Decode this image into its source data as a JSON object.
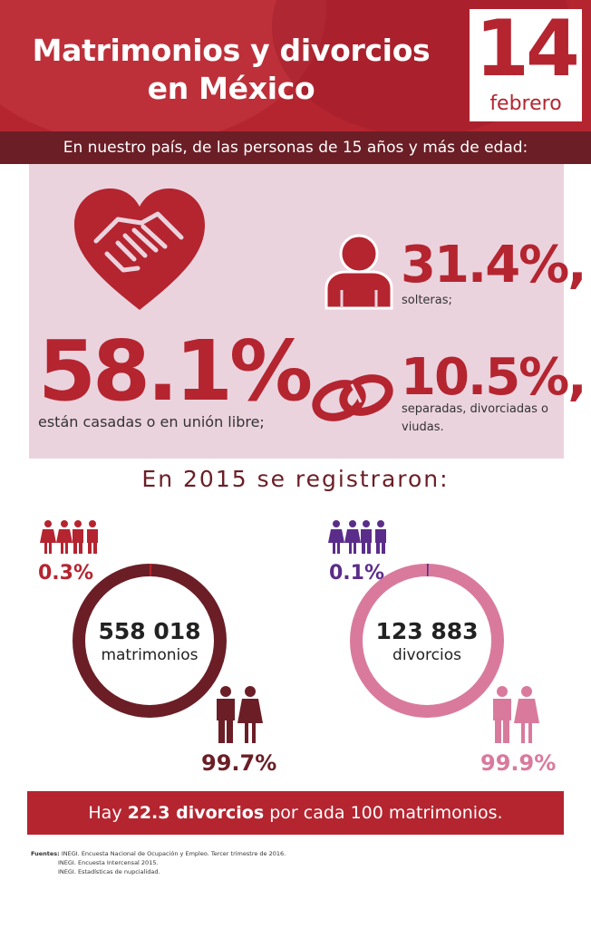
{
  "header": {
    "title_line1": "Matrimonios y divorcios",
    "title_line2": "en México",
    "date_day": "14",
    "date_month": "febrero"
  },
  "subtitle": "En nuestro país, de las personas de 15 años y más de edad:",
  "stats": {
    "married_value": "58.1%",
    "married_label": "están casadas o en unión libre;",
    "single_value": "31.4%,",
    "single_label": "solteras;",
    "separated_value": "10.5%,",
    "separated_label": "separadas, divorciadas o viudas."
  },
  "registered_heading": "En 2015 se registraron:",
  "marriages": {
    "count": "558 018",
    "label": "matrimonios",
    "same_sex_pct": "0.3%",
    "opposite_sex_pct": "99.7%",
    "ring_color": "#6b1e26",
    "accent_color": "#b42530",
    "same_sex_fraction": 0.003
  },
  "divorces": {
    "count": "123 883",
    "label": "divorcios",
    "same_sex_pct": "0.1%",
    "opposite_sex_pct": "99.9%",
    "ring_color": "#d97a9c",
    "accent_color": "#5b2d8a",
    "same_sex_fraction": 0.001
  },
  "ratio": {
    "prefix": "Hay ",
    "highlight": "22.3 divorcios",
    "suffix": " por cada 100 matrimonios."
  },
  "sources": {
    "label": "Fuentes:",
    "line1": "INEGI. Encuesta Nacional de Ocupación y Empleo. Tercer trimestre de 2016.",
    "line2": "INEGI. Encuesta Intercensal 2015.",
    "line3": "INEGI. Estadísticas de nupcialidad."
  },
  "colors": {
    "brand_red": "#b42530",
    "dark_maroon": "#6b1e26",
    "pink_panel": "#ebd3de",
    "pink_ring": "#d97a9c",
    "purple": "#5b2d8a"
  },
  "icons": [
    "heart-handshake-icon",
    "person-icon",
    "wedding-rings-icon",
    "two-women-icon",
    "two-men-icon",
    "couple-icon"
  ]
}
